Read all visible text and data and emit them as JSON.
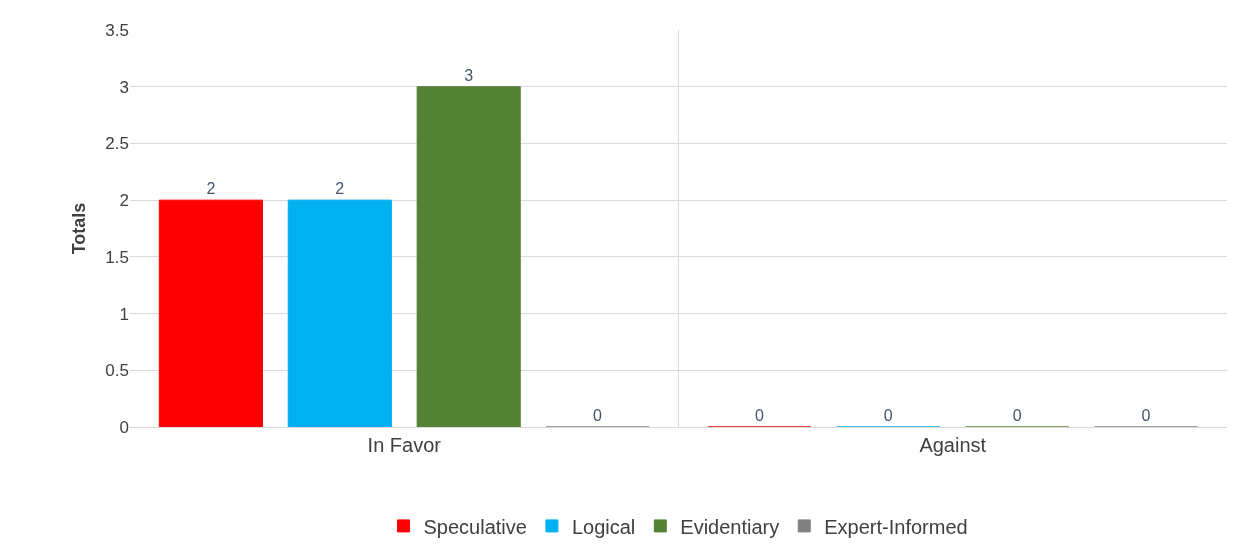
{
  "chart_data": {
    "type": "bar",
    "ylabel": "Totals",
    "categories": [
      "In Favor",
      "Against"
    ],
    "series": [
      {
        "name": "Speculative",
        "color": "#ff0000",
        "values": [
          2,
          0
        ]
      },
      {
        "name": "Logical",
        "color": "#00b0f0",
        "values": [
          2,
          0
        ]
      },
      {
        "name": "Evidentiary",
        "color": "#548235",
        "values": [
          3,
          0
        ]
      },
      {
        "name": "Expert-Informed",
        "color": "#808080",
        "values": [
          0,
          0
        ]
      }
    ],
    "ylim": [
      0,
      3.5
    ],
    "yticks": [
      0,
      0.5,
      1,
      1.5,
      2,
      2.5,
      3,
      3.5
    ],
    "grid": true,
    "legend": "bottom",
    "data_labels": true
  }
}
